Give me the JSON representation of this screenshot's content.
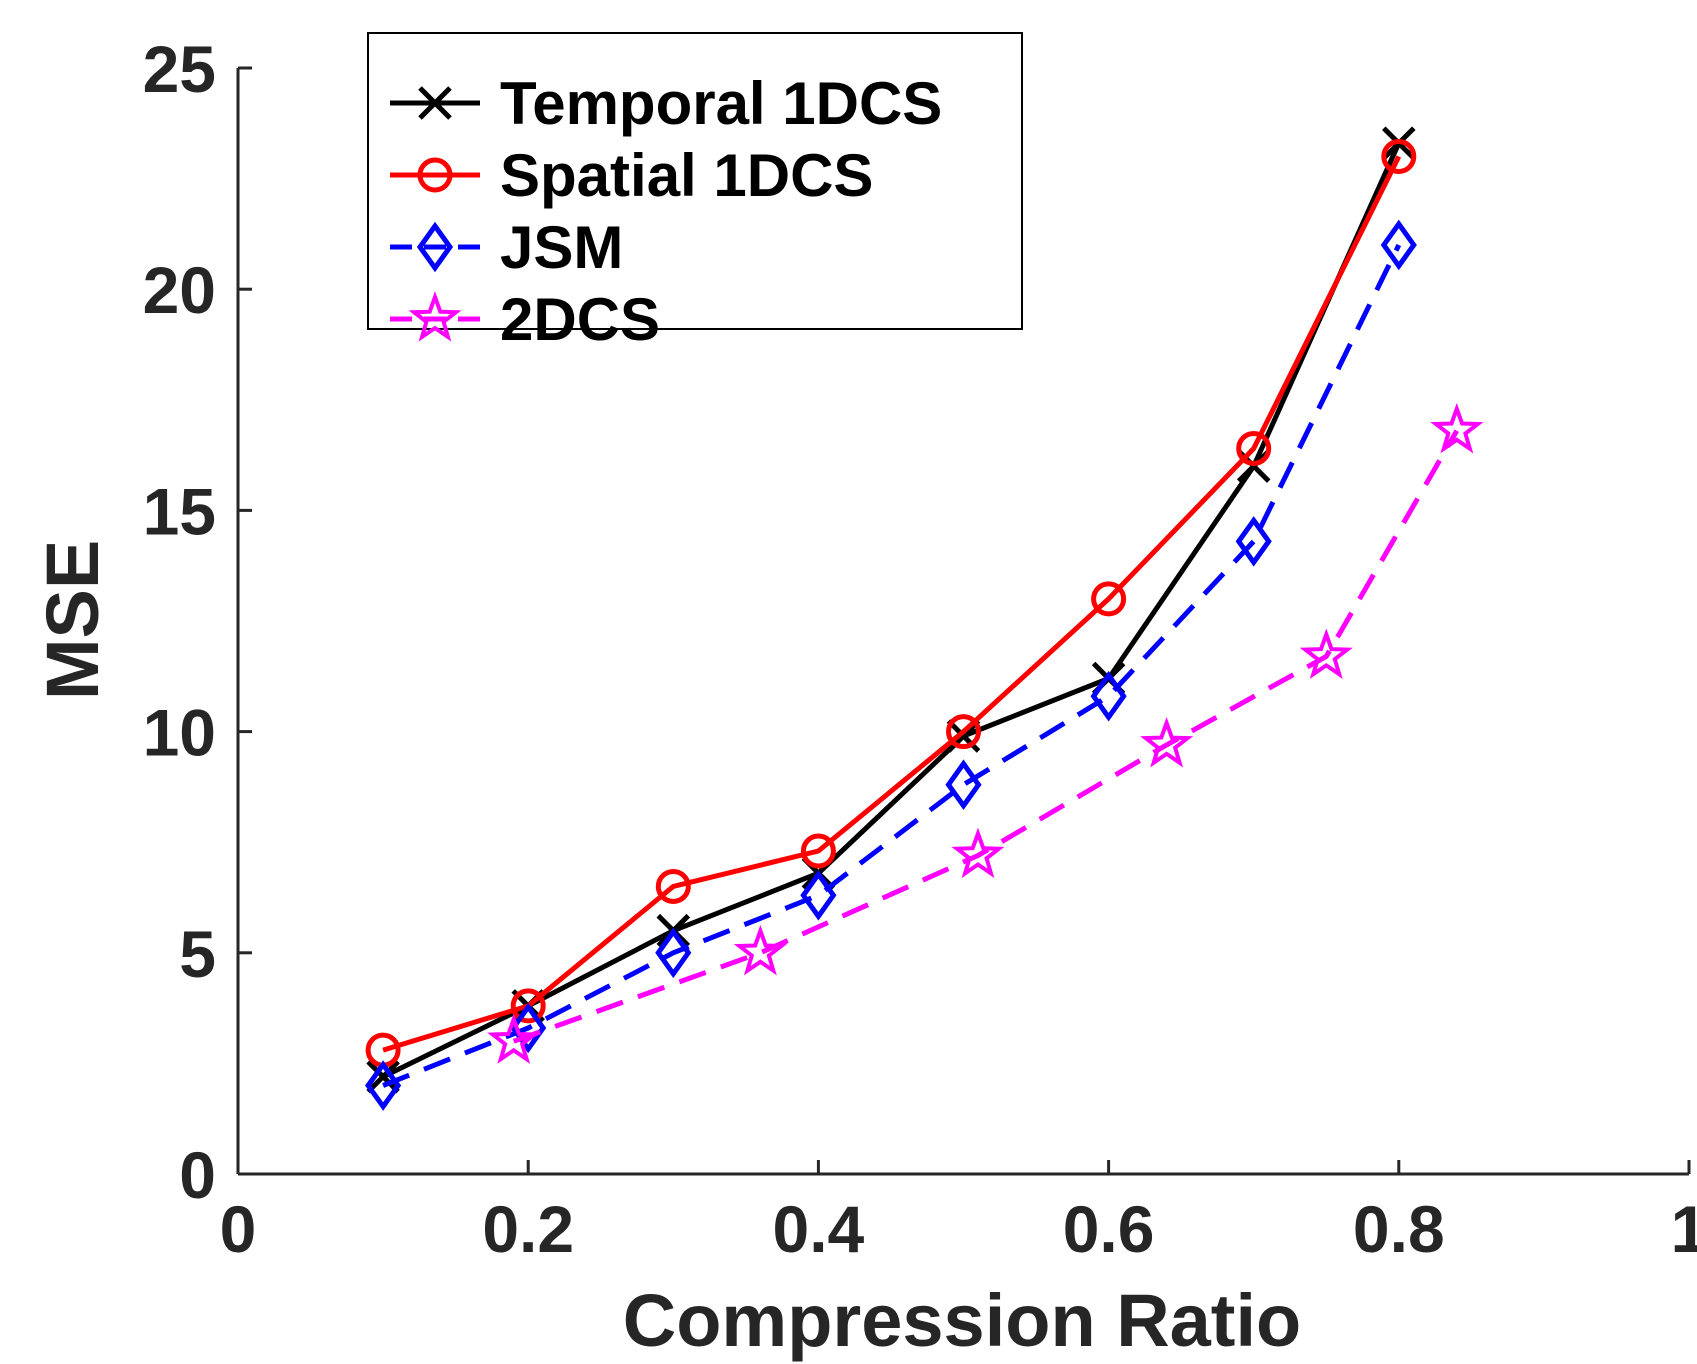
{
  "chart_data": {
    "type": "line",
    "title": "",
    "xlabel": "Compression Ratio",
    "ylabel": "MSE",
    "xlim": [
      0,
      1
    ],
    "ylim": [
      0,
      25
    ],
    "xticks": [
      0,
      0.2,
      0.4,
      0.6,
      0.8,
      1
    ],
    "xtick_labels": [
      "0",
      "0.2",
      "0.4",
      "0.6",
      "0.8",
      "1"
    ],
    "yticks": [
      0,
      5,
      10,
      15,
      20,
      25
    ],
    "ytick_labels": [
      "0",
      "5",
      "10",
      "15",
      "20",
      "25"
    ],
    "grid": false,
    "legend_position": "top-left",
    "series": [
      {
        "name": "Temporal 1DCS",
        "color": "#000000",
        "marker": "x",
        "line_style": "solid",
        "x": [
          0.1,
          0.2,
          0.3,
          0.4,
          0.5,
          0.6,
          0.7,
          0.8
        ],
        "y": [
          2.2,
          3.8,
          5.5,
          6.8,
          9.9,
          11.2,
          16.0,
          23.3
        ]
      },
      {
        "name": "Spatial 1DCS",
        "color": "#ff0000",
        "marker": "circle",
        "line_style": "solid",
        "x": [
          0.1,
          0.2,
          0.3,
          0.4,
          0.5,
          0.6,
          0.7,
          0.8
        ],
        "y": [
          2.8,
          3.8,
          6.5,
          7.3,
          10.0,
          13.0,
          16.4,
          23.0
        ]
      },
      {
        "name": "JSM",
        "color": "#0000ff",
        "marker": "diamond",
        "line_style": "dashed",
        "x": [
          0.1,
          0.2,
          0.3,
          0.4,
          0.5,
          0.6,
          0.7,
          0.8
        ],
        "y": [
          2.0,
          3.3,
          5.0,
          6.3,
          8.8,
          10.8,
          14.3,
          21.0
        ]
      },
      {
        "name": "2DCS",
        "color": "#ff00ff",
        "marker": "star",
        "line_style": "dashed",
        "x": [
          0.19,
          0.36,
          0.51,
          0.64,
          0.75,
          0.84
        ],
        "y": [
          3.0,
          5.0,
          7.2,
          9.7,
          11.7,
          16.8
        ]
      }
    ]
  }
}
